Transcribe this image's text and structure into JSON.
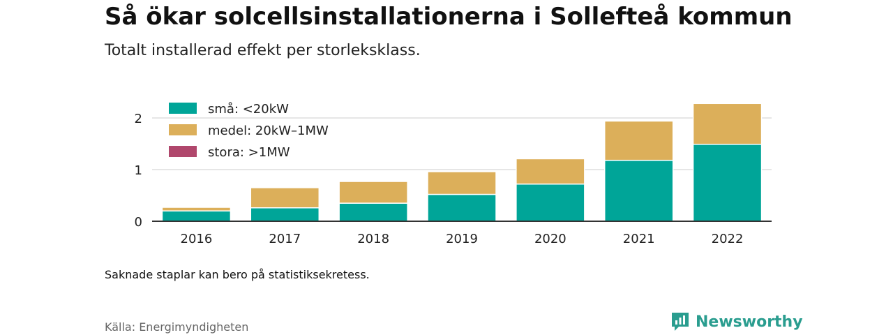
{
  "title": "Så ökar solcellsinstallationerna i Sollefteå kommun",
  "subtitle": "Totalt installerad effekt per storleksklass.",
  "note": "Saknade staplar kan bero på statistiksekretess.",
  "source": "Källa: Energimyndigheten",
  "brand": {
    "name": "Newsworthy",
    "icon": "newsworthy-logo-icon",
    "color": "#2a9d8f"
  },
  "chart_data": {
    "type": "bar",
    "stacked": true,
    "categories": [
      "2016",
      "2017",
      "2018",
      "2019",
      "2020",
      "2021",
      "2022"
    ],
    "series": [
      {
        "name": "små: <20kW",
        "color": "#00a598",
        "values": [
          0.2,
          0.26,
          0.35,
          0.52,
          0.72,
          1.18,
          1.49
        ]
      },
      {
        "name": "medel: 20kW–1MW",
        "color": "#dcaf5a",
        "values": [
          0.07,
          0.39,
          0.42,
          0.44,
          0.49,
          0.76,
          0.79
        ]
      },
      {
        "name": "stora: >1MW",
        "color": "#b0476c",
        "values": [
          0,
          0,
          0,
          0,
          0,
          0,
          0
        ]
      }
    ],
    "ylim": [
      0,
      2.4
    ],
    "yticks": [
      0,
      1,
      2
    ],
    "xlabel": "",
    "ylabel": "",
    "grid": true,
    "legend": "top-left"
  }
}
